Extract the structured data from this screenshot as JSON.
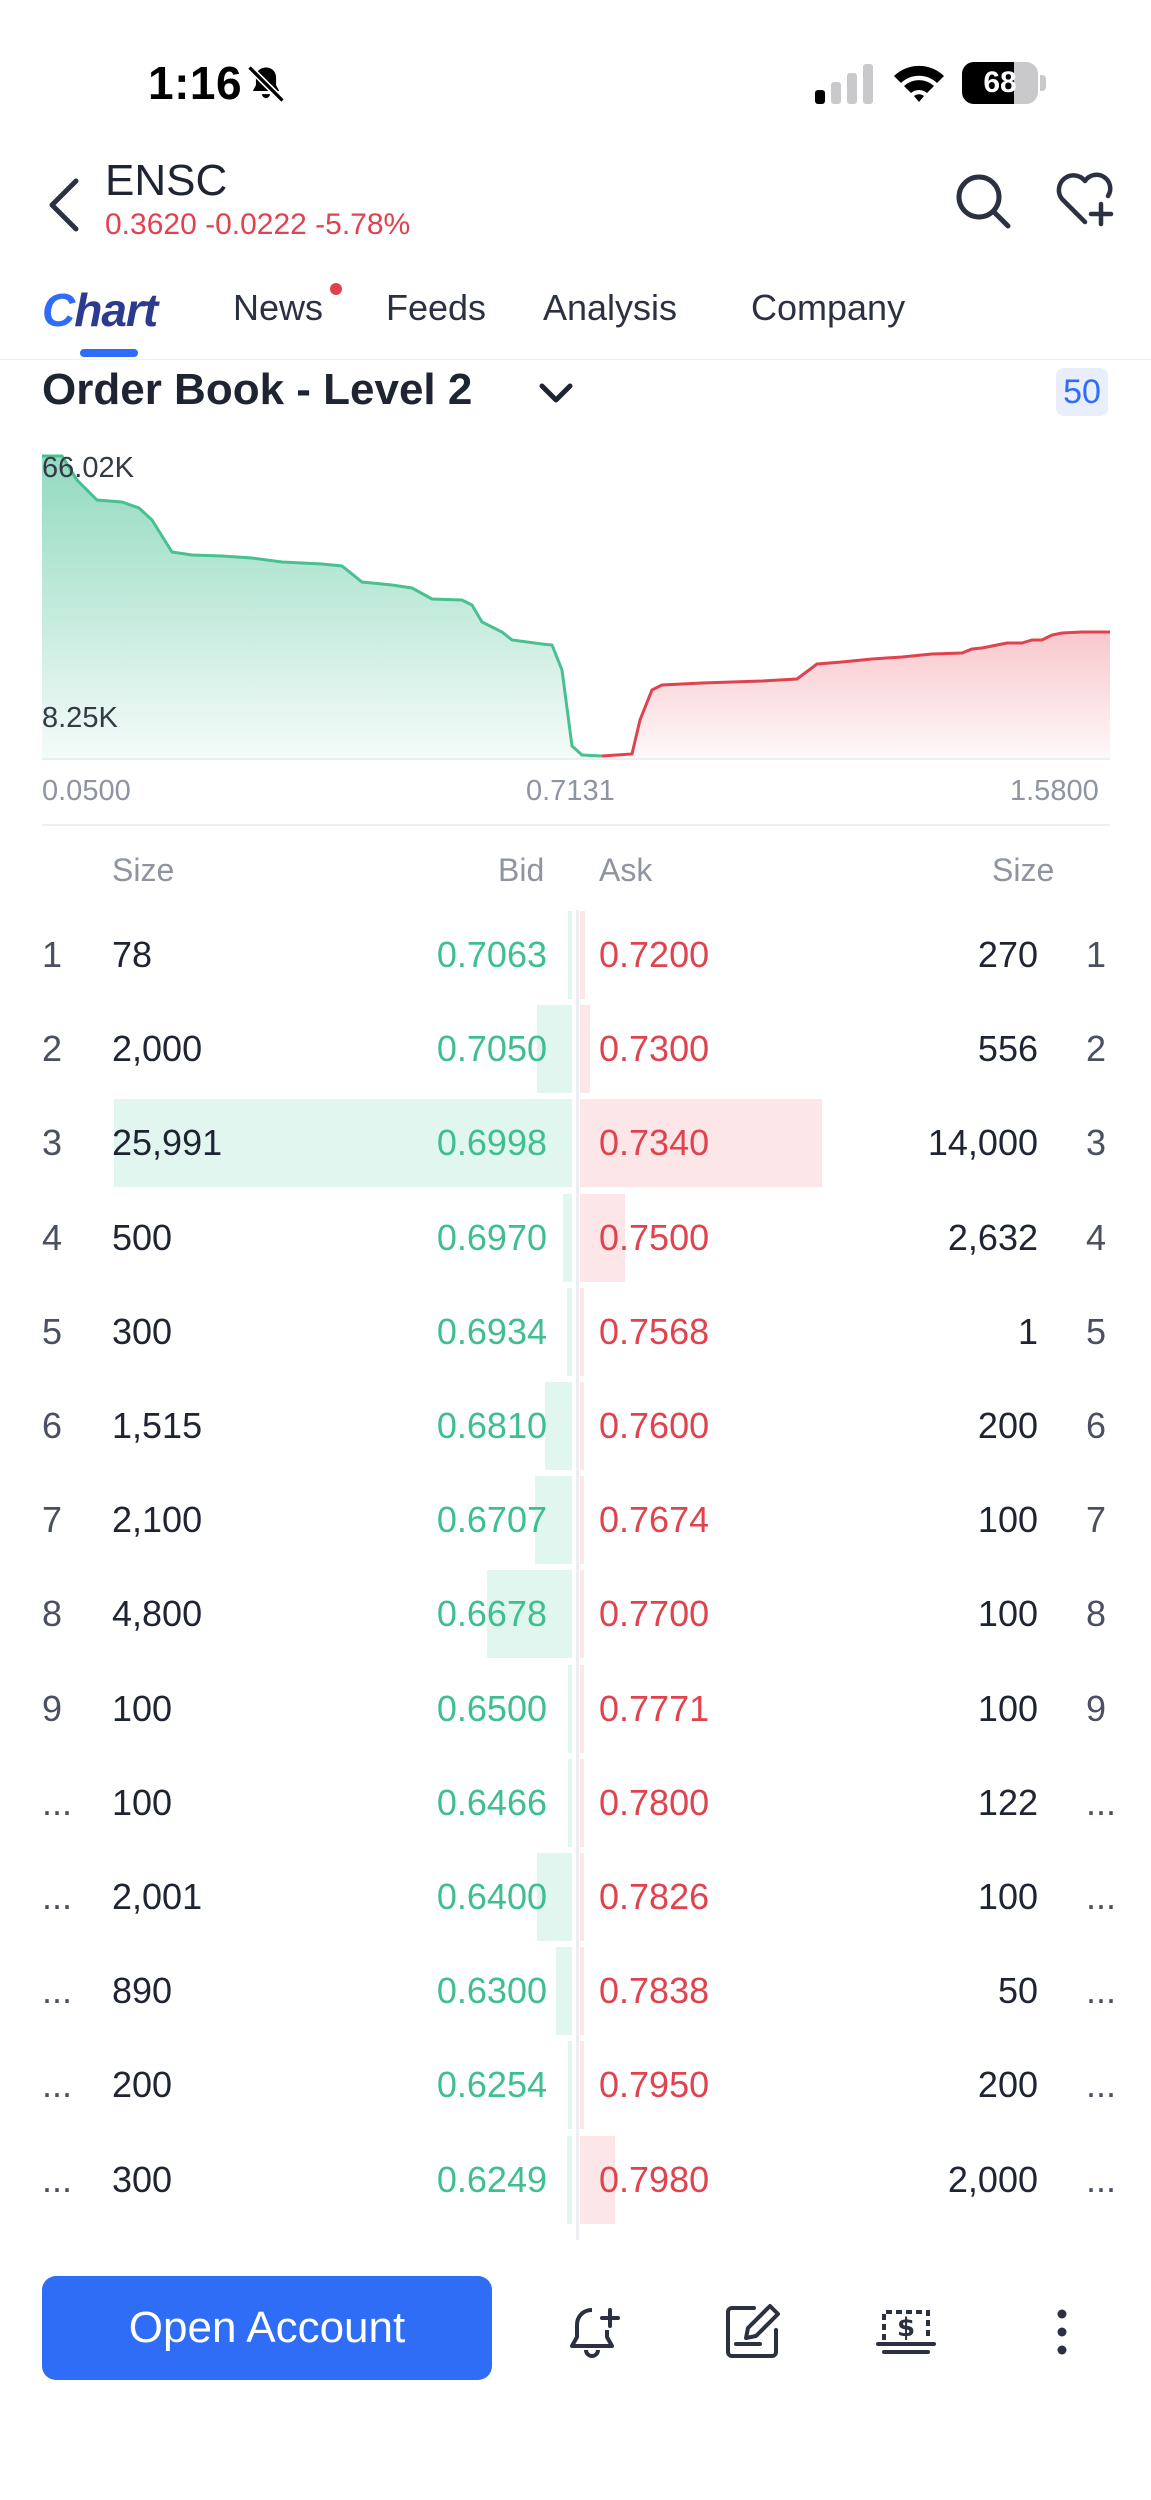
{
  "status_bar": {
    "time": "1:16",
    "battery": "68",
    "battery_level": 0.68
  },
  "header": {
    "ticker": "ENSC",
    "quote": "0.3620 -0.0222 -5.78%"
  },
  "tabs": [
    {
      "label": "Chart"
    },
    {
      "label": "News"
    },
    {
      "label": "Feeds"
    },
    {
      "label": "Analysis"
    },
    {
      "label": "Company"
    }
  ],
  "order_book": {
    "title": "Order Book - Level 2",
    "depth": "50",
    "chart": {
      "max_label": "66.02K",
      "min_label": "8.25K",
      "x_left": "0.0500",
      "x_mid": "0.7131",
      "x_right": "1.5800"
    },
    "columns": {
      "size_left": "Size",
      "bid": "Bid",
      "ask": "Ask",
      "size_right": "Size"
    },
    "rows": [
      {
        "n": "1",
        "bid_size": "78",
        "bid": "0.7063",
        "ask": "0.7200",
        "ask_size": "270",
        "m": "1"
      },
      {
        "n": "2",
        "bid_size": "2,000",
        "bid": "0.7050",
        "ask": "0.7300",
        "ask_size": "556",
        "m": "2"
      },
      {
        "n": "3",
        "bid_size": "25,991",
        "bid": "0.6998",
        "ask": "0.7340",
        "ask_size": "14,000",
        "m": "3"
      },
      {
        "n": "4",
        "bid_size": "500",
        "bid": "0.6970",
        "ask": "0.7500",
        "ask_size": "2,632",
        "m": "4"
      },
      {
        "n": "5",
        "bid_size": "300",
        "bid": "0.6934",
        "ask": "0.7568",
        "ask_size": "1",
        "m": "5"
      },
      {
        "n": "6",
        "bid_size": "1,515",
        "bid": "0.6810",
        "ask": "0.7600",
        "ask_size": "200",
        "m": "6"
      },
      {
        "n": "7",
        "bid_size": "2,100",
        "bid": "0.6707",
        "ask": "0.7674",
        "ask_size": "100",
        "m": "7"
      },
      {
        "n": "8",
        "bid_size": "4,800",
        "bid": "0.6678",
        "ask": "0.7700",
        "ask_size": "100",
        "m": "8"
      },
      {
        "n": "9",
        "bid_size": "100",
        "bid": "0.6500",
        "ask": "0.7771",
        "ask_size": "100",
        "m": "9"
      },
      {
        "n": "...",
        "bid_size": "100",
        "bid": "0.6466",
        "ask": "0.7800",
        "ask_size": "122",
        "m": "..."
      },
      {
        "n": "...",
        "bid_size": "2,001",
        "bid": "0.6400",
        "ask": "0.7826",
        "ask_size": "100",
        "m": "..."
      },
      {
        "n": "...",
        "bid_size": "890",
        "bid": "0.6300",
        "ask": "0.7838",
        "ask_size": "50",
        "m": "..."
      },
      {
        "n": "...",
        "bid_size": "200",
        "bid": "0.6254",
        "ask": "0.7950",
        "ask_size": "200",
        "m": "..."
      },
      {
        "n": "...",
        "bid_size": "300",
        "bid": "0.6249",
        "ask": "0.7980",
        "ask_size": "2,000",
        "m": "..."
      }
    ]
  },
  "bottom_bar": {
    "open_account": "Open Account"
  },
  "icons": [
    "bell-off-icon",
    "signal-icon",
    "wifi-icon",
    "back-icon",
    "search-icon",
    "heart-plus-icon",
    "chevron-down-icon",
    "bell-plus-icon",
    "edit-note-icon",
    "trade-icon",
    "more-vertical-icon"
  ],
  "colors": {
    "accent": "#2f6df6",
    "bid": "#3fbf8f",
    "ask": "#e0434e"
  }
}
